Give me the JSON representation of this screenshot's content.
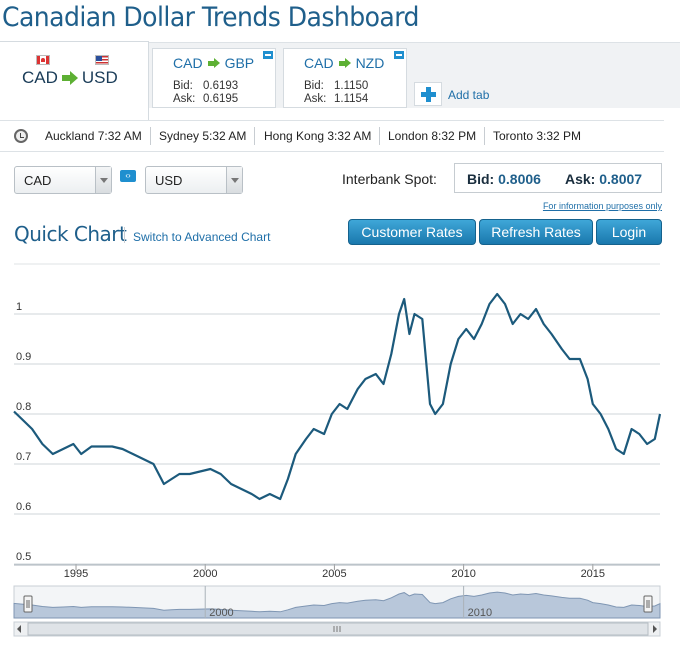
{
  "title": "Canadian Dollar Trends Dashboard",
  "tabs": {
    "active": {
      "from": "CAD",
      "to": "USD"
    },
    "others": [
      {
        "from": "CAD",
        "to": "GBP",
        "bid_label": "Bid:",
        "bid": "0.6193",
        "ask_label": "Ask:",
        "ask": "0.6195"
      },
      {
        "from": "CAD",
        "to": "NZD",
        "bid_label": "Bid:",
        "bid": "1.1150",
        "ask_label": "Ask:",
        "ask": "1.1154"
      }
    ],
    "add_label": "Add tab"
  },
  "clocks": [
    "Auckland 7:32 AM",
    "Sydney 5:32 AM",
    "Hong Kong 3:32 AM",
    "London 8:32 PM",
    "Toronto 3:32 PM"
  ],
  "selects": {
    "from": "CAD",
    "to": "USD"
  },
  "spot": {
    "label": "Interbank Spot:",
    "bid_label": "Bid:",
    "bid": "0.8006",
    "ask_label": "Ask:",
    "ask": "0.8007"
  },
  "info_note": "For information purposes only",
  "quick_chart": {
    "title": "Quick Chart",
    "advanced_link": "Switch to Advanced Chart"
  },
  "buttons": {
    "customer_rates": "Customer Rates",
    "refresh_rates": "Refresh Rates",
    "login": "Login"
  },
  "colors": {
    "accent": "#1f5f8b",
    "button": "#1f8fcf",
    "line": "#1c5a7c",
    "navigator_fill": "#b8c7da"
  },
  "chart_data": {
    "type": "line",
    "xlim": [
      1992.6,
      2017.6
    ],
    "ylim": [
      0.5,
      1.1
    ],
    "yticks": [
      0.5,
      0.6,
      0.7,
      0.8,
      0.9,
      1
    ],
    "ytick_labels": [
      "0.5",
      "0.6",
      "0.7",
      "0.8",
      "0.9",
      "1"
    ],
    "xticks": [
      1995,
      2000,
      2005,
      2010,
      2015
    ],
    "xtick_labels": [
      "1995",
      "2000",
      "2005",
      "2010",
      "2015"
    ],
    "navigator_ticks": [
      2000,
      2010
    ],
    "navigator_tick_labels": [
      "2000",
      "2010"
    ],
    "grid": true,
    "series": [
      {
        "x": [
          1992.6,
          1992.9,
          1993.3,
          1993.7,
          1994.1,
          1994.5,
          1994.9,
          1995.2,
          1995.6,
          1996.0,
          1996.4,
          1996.8,
          1997.2,
          1997.6,
          1998.0,
          1998.4,
          1998.7,
          1999.0,
          1999.4,
          1999.8,
          2000.2,
          2000.6,
          2001.0,
          2001.4,
          2001.8,
          2002.1,
          2002.5,
          2002.9,
          2003.2,
          2003.5,
          2003.9,
          2004.2,
          2004.6,
          2004.9,
          2005.2,
          2005.5,
          2005.9,
          2006.2,
          2006.6,
          2006.9,
          2007.2,
          2007.5,
          2007.7,
          2007.9,
          2008.1,
          2008.4,
          2008.7,
          2008.9,
          2009.2,
          2009.5,
          2009.8,
          2010.1,
          2010.4,
          2010.7,
          2011.0,
          2011.3,
          2011.6,
          2011.9,
          2012.2,
          2012.5,
          2012.8,
          2013.1,
          2013.4,
          2013.8,
          2014.1,
          2014.5,
          2014.8,
          2015.0,
          2015.3,
          2015.6,
          2015.9,
          2016.2,
          2016.5,
          2016.8,
          2017.1,
          2017.4,
          2017.6
        ],
        "y": [
          0.805,
          0.79,
          0.77,
          0.74,
          0.72,
          0.73,
          0.74,
          0.72,
          0.735,
          0.735,
          0.735,
          0.73,
          0.72,
          0.71,
          0.7,
          0.66,
          0.67,
          0.68,
          0.68,
          0.685,
          0.69,
          0.68,
          0.66,
          0.65,
          0.64,
          0.63,
          0.64,
          0.63,
          0.67,
          0.72,
          0.75,
          0.77,
          0.76,
          0.8,
          0.82,
          0.81,
          0.85,
          0.87,
          0.88,
          0.86,
          0.92,
          1.0,
          1.03,
          0.96,
          1.0,
          0.99,
          0.82,
          0.8,
          0.82,
          0.9,
          0.95,
          0.97,
          0.95,
          0.98,
          1.02,
          1.04,
          1.02,
          0.98,
          1.0,
          0.99,
          1.01,
          0.98,
          0.96,
          0.93,
          0.91,
          0.91,
          0.87,
          0.82,
          0.8,
          0.77,
          0.73,
          0.72,
          0.77,
          0.76,
          0.74,
          0.75,
          0.8
        ]
      }
    ]
  }
}
